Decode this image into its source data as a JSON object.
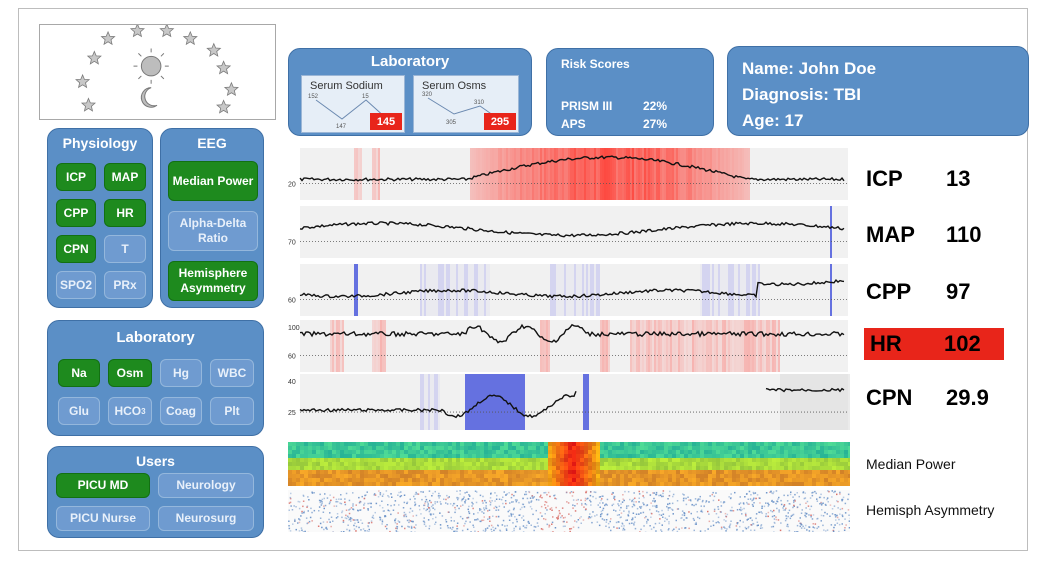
{
  "lab_header": {
    "title": "Laboratory",
    "cards": [
      {
        "title": "Serum Sodium",
        "points": [
          "152",
          "147",
          "15"
        ],
        "value": "145"
      },
      {
        "title": "Serum Osms",
        "points": [
          "320",
          "305",
          "310"
        ],
        "value": "295"
      }
    ]
  },
  "risk": {
    "title": "Risk Scores",
    "rows": [
      {
        "label": "PRISM III",
        "value": "22%"
      },
      {
        "label": "APS",
        "value": "27%"
      }
    ]
  },
  "patient": {
    "name": "Name: John Doe",
    "diagnosis": "Diagnosis: TBI",
    "age": "Age: 17"
  },
  "physiology": {
    "title": "Physiology",
    "items": [
      {
        "label": "ICP",
        "selected": true
      },
      {
        "label": "MAP",
        "selected": true
      },
      {
        "label": "CPP",
        "selected": true
      },
      {
        "label": "HR",
        "selected": true
      },
      {
        "label": "CPN",
        "selected": true
      },
      {
        "label": "T",
        "selected": false
      },
      {
        "label": "SPO2",
        "selected": false
      },
      {
        "label": "PRx",
        "selected": false
      }
    ]
  },
  "eeg": {
    "title": "EEG",
    "items": [
      {
        "label": "Median Power",
        "selected": true
      },
      {
        "label": "Alpha-Delta Ratio",
        "selected": false
      },
      {
        "label": "Hemisphere Asymmetry",
        "selected": true
      }
    ]
  },
  "laboratory": {
    "title": "Laboratory",
    "items": [
      {
        "label": "Na",
        "selected": true
      },
      {
        "label": "Osm",
        "selected": true
      },
      {
        "label": "Hg",
        "selected": false
      },
      {
        "label": "WBC",
        "selected": false
      },
      {
        "label": "Glu",
        "selected": false
      },
      {
        "label": "HCO3",
        "selected": false
      },
      {
        "label": "Coag",
        "selected": false
      },
      {
        "label": "Plt",
        "selected": false
      }
    ]
  },
  "users": {
    "title": "Users",
    "items": [
      {
        "label": "PICU MD",
        "selected": true
      },
      {
        "label": "Neurology",
        "selected": false
      },
      {
        "label": "PICU Nurse",
        "selected": false
      },
      {
        "label": "Neurosurg",
        "selected": false
      }
    ]
  },
  "vitals": [
    {
      "name": "ICP",
      "value": "13",
      "axis": [
        "20"
      ],
      "alert": false
    },
    {
      "name": "MAP",
      "value": "110",
      "axis": [
        "70"
      ],
      "alert": false
    },
    {
      "name": "CPP",
      "value": "97",
      "axis": [
        "60"
      ],
      "alert": false
    },
    {
      "name": "HR",
      "value": "102",
      "axis": [
        "100",
        "60"
      ],
      "alert": true
    },
    {
      "name": "CPN",
      "value": "29.9",
      "axis": [
        "40",
        "25"
      ],
      "alert": false
    }
  ],
  "eeg_tracks": {
    "median_power": "Median Power",
    "hemisph_asymmetry": "Hemisph Asymmetry"
  },
  "colors": {
    "panel": "#5b8fc6",
    "selected": "#1e8a1e",
    "alert": "#e8251a"
  }
}
